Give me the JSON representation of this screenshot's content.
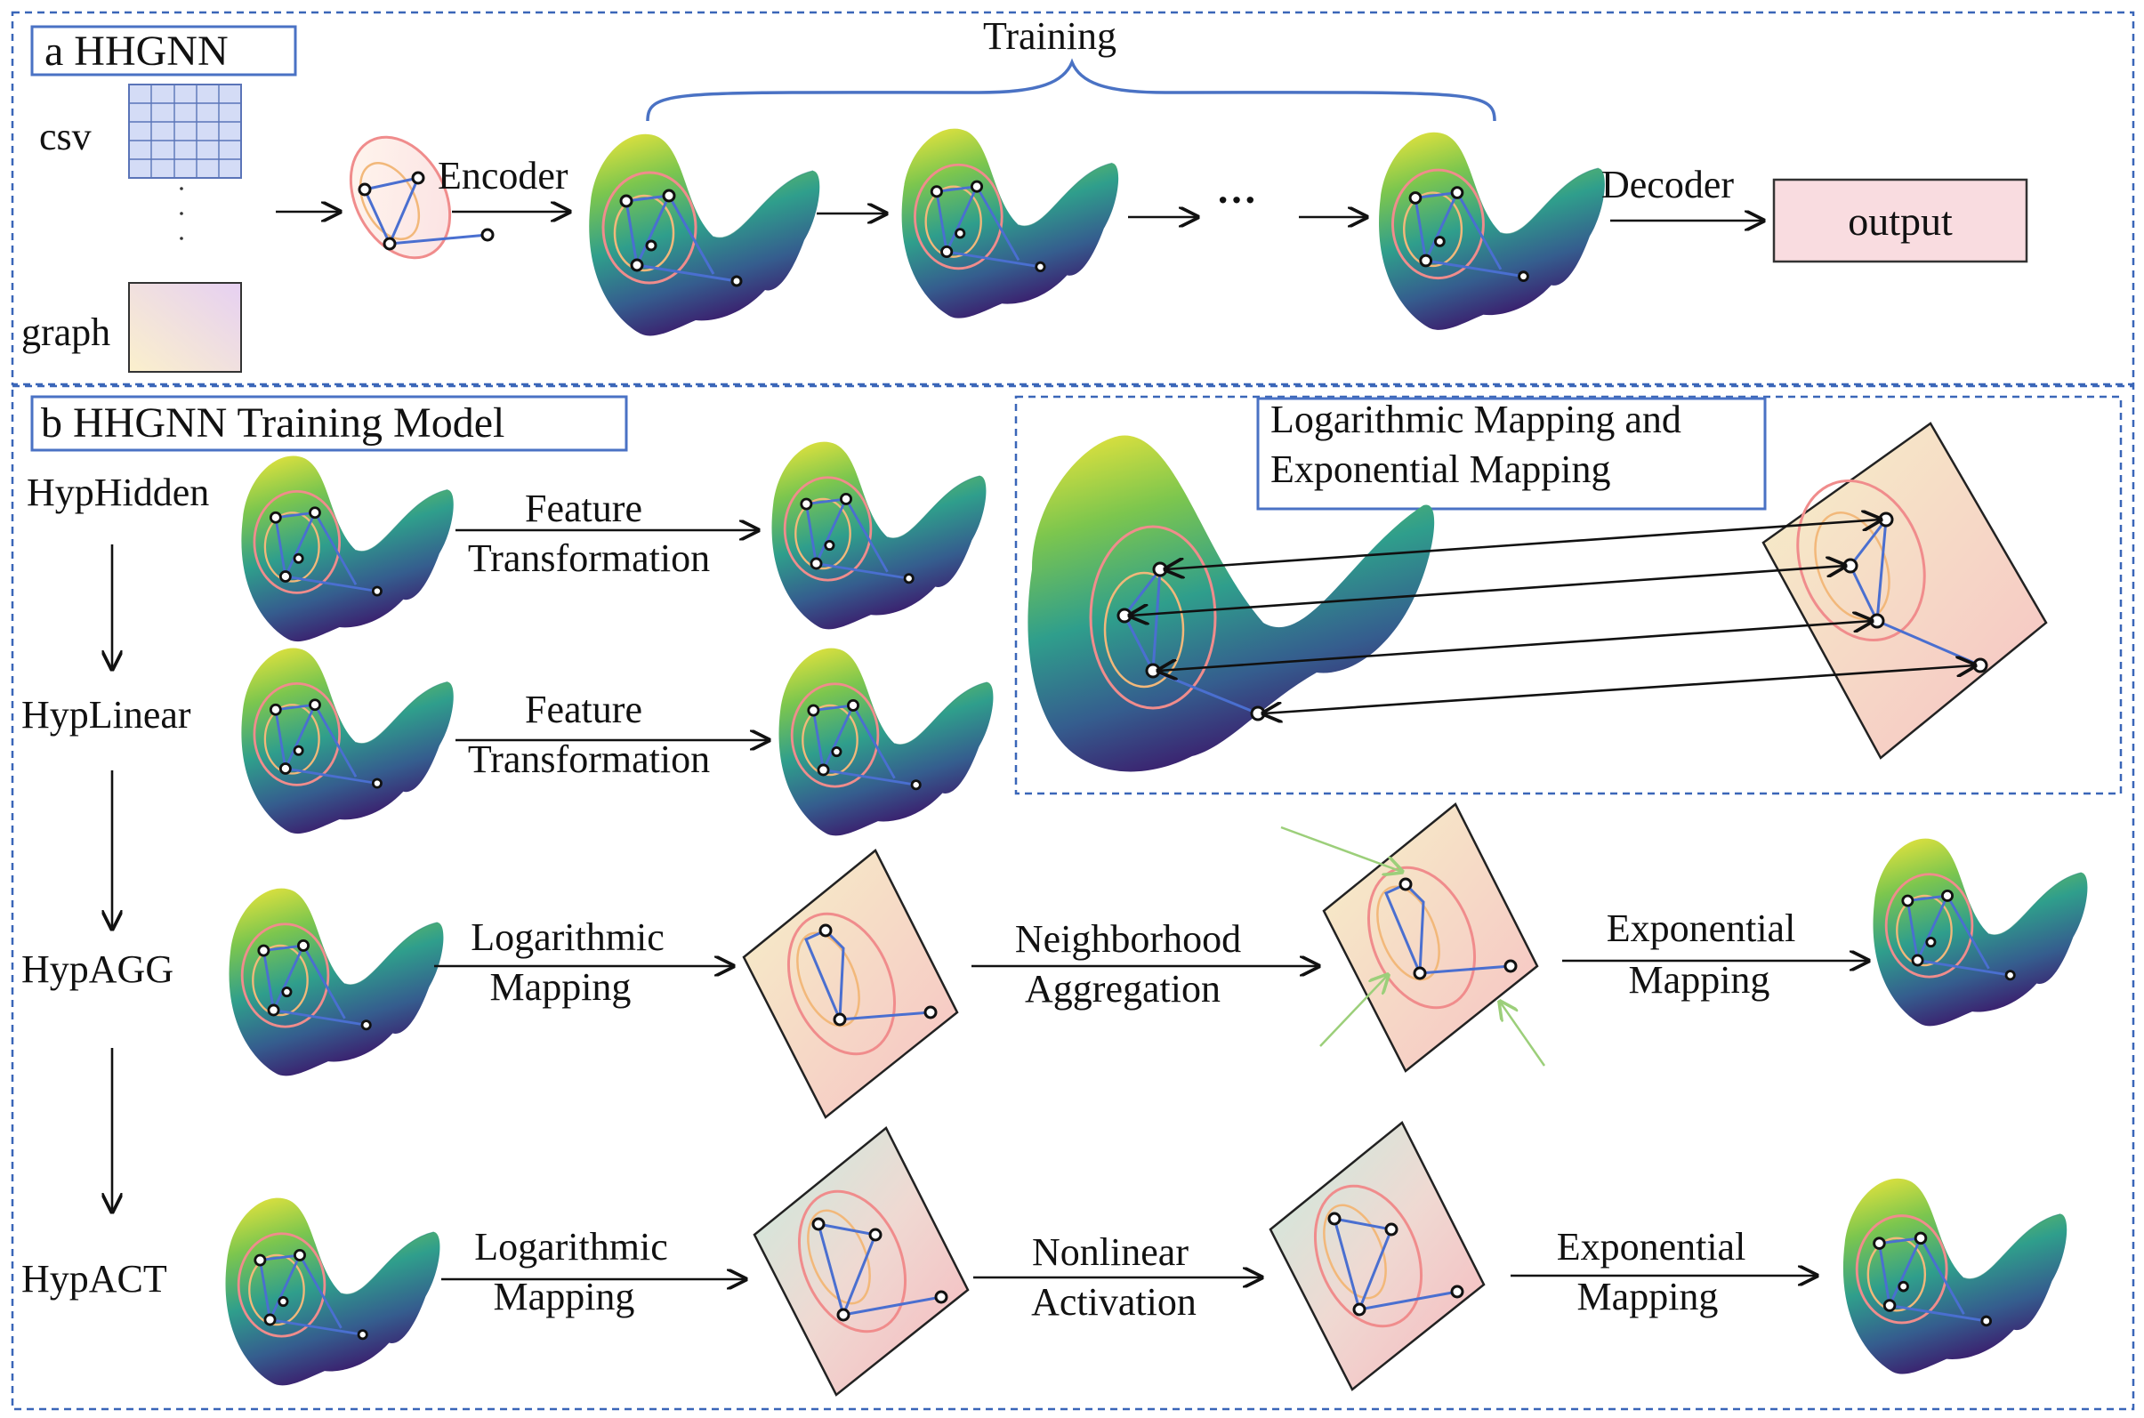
{
  "panel_a": {
    "title": "a  HHGNN",
    "training_label": "Training",
    "csv_label": "csv",
    "graph_label": "graph",
    "encoder_label": "Encoder",
    "decoder_label": "Decoder",
    "ellipsis": "···",
    "output_label": "output"
  },
  "panel_b": {
    "title": "b   HHGNN Training Model",
    "layers": [
      "HypHidden",
      "HypLinear",
      "HypAGG",
      "HypACT"
    ],
    "feature_transformation": [
      "Feature",
      "Transformation"
    ],
    "mapping_box_title": [
      "Logarithmic Mapping and",
      "Exponential Mapping"
    ],
    "agg_step1": [
      "Logarithmic",
      "Mapping"
    ],
    "agg_step2": [
      "Neighborhood",
      "Aggregation"
    ],
    "agg_step3": [
      "Exponential",
      "Mapping"
    ],
    "act_step1": [
      "Logarithmic",
      "Mapping"
    ],
    "act_step2": [
      "Nonlinear",
      "Activation"
    ],
    "act_step3": [
      "Exponential",
      "Mapping"
    ]
  },
  "colors": {
    "frame_blue": "#3a66b8",
    "surface_top": "#f2e63a",
    "surface_mid": "#2f9e8c",
    "surface_bottom": "#3b1f6e",
    "output_fill": "#f9dce0",
    "edge_blue": "#4a6fd0",
    "ellipse_pink": "#f08c8c"
  },
  "icons": {
    "surface": "hyperbolic-saddle-surface-icon",
    "plane": "tangent-plane-icon",
    "graph": "graph-nodes-icon"
  }
}
